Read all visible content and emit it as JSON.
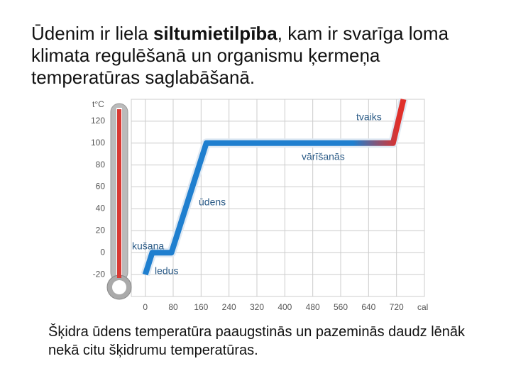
{
  "slide": {
    "heading": [
      "Ūdenim ir liela ",
      "siltumietilpība",
      ", kam ir svarīga loma klimata regulēšanā un organismu ķermeņa temperatūras saglabāšanā."
    ],
    "caption": "Šķidra ūdens temperatūra paaugstinās un pazeminās daudz lēnāk nekā citu šķidrumu temperatūras."
  },
  "chart_data": {
    "type": "line",
    "x_label": "cal",
    "y_label": "t°C",
    "x": [
      0,
      20,
      75,
      175,
      710,
      740
    ],
    "series": [
      {
        "color": "#1f7fcf",
        "end_color": "#e0302b",
        "values": [
          -20,
          0,
          0,
          100,
          100,
          140
        ]
      }
    ],
    "xlim": [
      -40,
      800
    ],
    "ylim": [
      -40,
      140
    ],
    "xticks": [
      0,
      80,
      160,
      240,
      320,
      400,
      480,
      560,
      640,
      720
    ],
    "yticks": [
      -20,
      0,
      20,
      40,
      60,
      80,
      100,
      120
    ],
    "grid": true,
    "annotations": [
      "tvaiks",
      "vārīšanās",
      "ūdens",
      "kušana",
      "ledus"
    ]
  }
}
